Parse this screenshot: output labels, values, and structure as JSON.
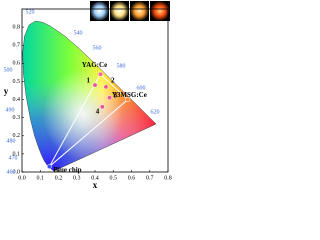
{
  "chart_data": {
    "type": "scatter",
    "xlabel": "x",
    "ylabel": "y",
    "xlim": [
      0,
      0.8
    ],
    "ylim": [
      0,
      0.9
    ],
    "xticks": [
      {
        "value": 0,
        "label": "0.0"
      },
      0.1,
      0.2,
      0.3,
      0.4,
      0.5,
      0.6,
      0.7,
      0.8
    ],
    "yticks": [
      {
        "value": 0,
        "label": "0.0"
      },
      0.1,
      0.2,
      0.3,
      0.4,
      0.5,
      0.6,
      0.7,
      0.8
    ],
    "wavelength_labels": [
      460,
      470,
      480,
      490,
      500,
      520,
      540,
      560,
      580,
      600,
      620
    ],
    "series": [
      {
        "name": "YAG:Ce",
        "color": "#ff5fa8",
        "x": [
          0.43
        ],
        "y": [
          0.54
        ]
      },
      {
        "name": "1",
        "color": "#e9559b",
        "x": [
          0.4
        ],
        "y": [
          0.48
        ]
      },
      {
        "name": "2",
        "color": "#e9559b",
        "x": [
          0.46
        ],
        "y": [
          0.47
        ]
      },
      {
        "name": "3",
        "color": "#e9559b",
        "x": [
          0.48
        ],
        "y": [
          0.41
        ]
      },
      {
        "name": "4",
        "color": "#e9559b",
        "x": [
          0.44
        ],
        "y": [
          0.36
        ]
      },
      {
        "name": "Y3MSG:Ce",
        "color": "#ff8a3d",
        "x": [
          0.58
        ],
        "y": [
          0.4
        ]
      },
      {
        "name": "Blue chip",
        "color": "#3355ff",
        "x": [
          0.15
        ],
        "y": [
          0.03
        ]
      }
    ]
  }
}
